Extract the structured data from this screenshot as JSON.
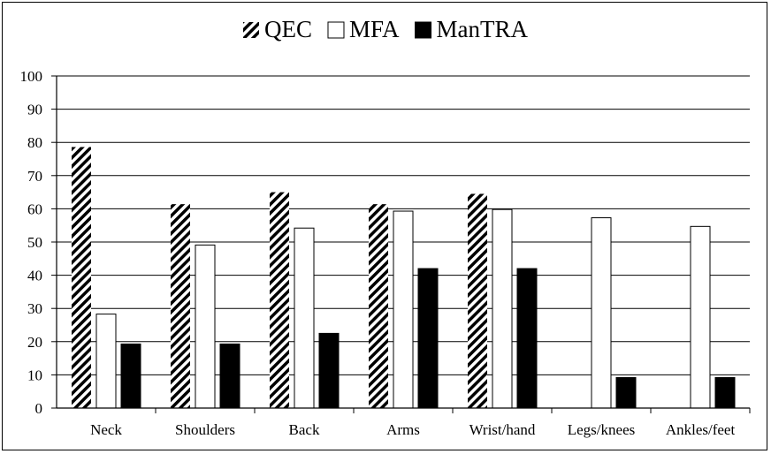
{
  "chart_data": {
    "type": "bar",
    "title": "",
    "xlabel": "",
    "ylabel": "",
    "categories": [
      "Neck",
      "Shoulders",
      "Back",
      "Arms",
      "Wrist/hand",
      "Legs/knees",
      "Ankles/feet"
    ],
    "series": [
      {
        "name": "QEC",
        "pattern": "diagonal-hatch",
        "color": "#000000",
        "values": [
          78.6,
          61.4,
          65,
          61.4,
          64.5,
          null,
          null
        ]
      },
      {
        "name": "MFA",
        "pattern": "none",
        "color": "#ffffff",
        "values": [
          28.3,
          49.1,
          54.2,
          59.3,
          59.8,
          57.3,
          54.7
        ]
      },
      {
        "name": "ManTRA",
        "pattern": "solid",
        "color": "#000000",
        "values": [
          19.3,
          19.3,
          22.5,
          42,
          42,
          9.2,
          9.2
        ]
      }
    ],
    "ylim": [
      0,
      100
    ],
    "yticks": [
      0,
      10,
      20,
      30,
      40,
      50,
      60,
      70,
      80,
      90,
      100
    ],
    "grid": true,
    "legend_position": "top-center"
  }
}
